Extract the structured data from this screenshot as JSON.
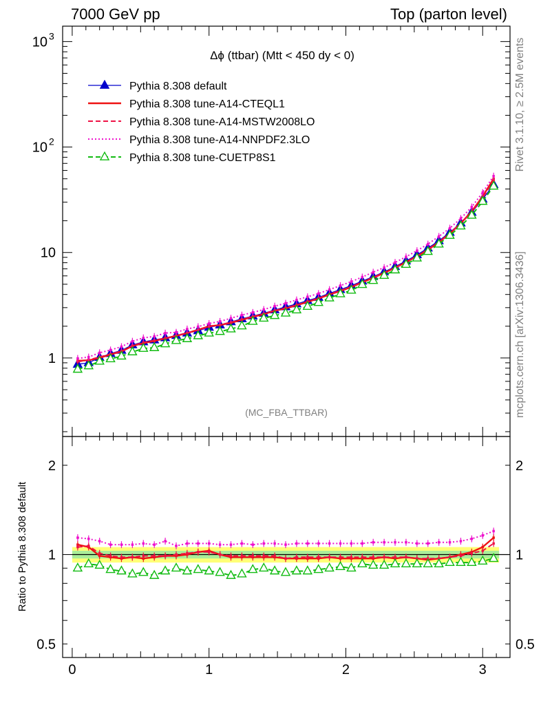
{
  "header": {
    "left_title": "7000 GeV pp",
    "right_title": "Top (parton level)"
  },
  "side_labels": {
    "rivet": "Rivet 3.1.10, ≥ 2.5M events",
    "mcplots": "mcplots.cern.ch [arXiv:1306.3436]"
  },
  "watermark": "(MC_FBA_TTBAR)",
  "ratio_ylabel": "Ratio to Pythia 8.308 default",
  "chart_data": [
    {
      "type": "line",
      "title": "Δϕ (ttbar) (Mtt < 450 dy < 0)",
      "y_scale": "log",
      "xlim": [
        -0.07,
        3.2
      ],
      "ylim": [
        0.18,
        1400
      ],
      "x_ticks": [
        0,
        1,
        2,
        3
      ],
      "y_tick_labels": [
        {
          "value": 1,
          "label": "1"
        },
        {
          "value": 10,
          "label": "10"
        },
        {
          "value": 100,
          "label": "10",
          "sup": "2"
        },
        {
          "value": 1000,
          "label": "10",
          "sup": "3"
        }
      ],
      "legend_position": "top-left",
      "x": [
        0.04,
        0.12,
        0.2,
        0.28,
        0.36,
        0.44,
        0.52,
        0.6,
        0.68,
        0.76,
        0.84,
        0.92,
        1.0,
        1.08,
        1.16,
        1.24,
        1.32,
        1.4,
        1.48,
        1.56,
        1.64,
        1.72,
        1.8,
        1.88,
        1.96,
        2.04,
        2.12,
        2.2,
        2.28,
        2.36,
        2.44,
        2.52,
        2.6,
        2.68,
        2.76,
        2.84,
        2.92,
        3.0,
        3.08
      ],
      "series": [
        {
          "name": "Pythia 8.308 default",
          "color": "#0000cc",
          "style": "solid-triangle",
          "values": [
            0.87,
            0.9,
            1.01,
            1.1,
            1.18,
            1.33,
            1.42,
            1.48,
            1.55,
            1.63,
            1.72,
            1.81,
            1.95,
            2.05,
            2.2,
            2.35,
            2.5,
            2.65,
            2.85,
            3.05,
            3.25,
            3.5,
            3.75,
            4.1,
            4.45,
            4.85,
            5.35,
            5.9,
            6.55,
            7.35,
            8.3,
            9.5,
            11.0,
            12.9,
            15.5,
            19.0,
            24.0,
            32.0,
            44.0
          ]
        },
        {
          "name": "Pythia 8.308 tune-A14-CTEQL1",
          "color": "#ee1111",
          "style": "solid",
          "values": [
            0.94,
            0.95,
            1.0,
            1.08,
            1.15,
            1.3,
            1.38,
            1.45,
            1.53,
            1.62,
            1.72,
            1.85,
            2.0,
            2.05,
            2.15,
            2.3,
            2.45,
            2.6,
            2.8,
            2.95,
            3.15,
            3.4,
            3.65,
            4.0,
            4.3,
            4.7,
            5.2,
            5.75,
            6.4,
            7.15,
            8.1,
            9.2,
            10.6,
            12.5,
            15.1,
            18.9,
            24.5,
            34.0,
            50.0
          ]
        },
        {
          "name": "Pythia 8.308 tune-A14-MSTW2008LO",
          "color": "#ee1144",
          "style": "dashed",
          "values": [
            0.92,
            0.96,
            1.02,
            1.09,
            1.16,
            1.31,
            1.4,
            1.47,
            1.54,
            1.63,
            1.73,
            1.84,
            1.98,
            2.06,
            2.18,
            2.32,
            2.47,
            2.63,
            2.82,
            2.98,
            3.18,
            3.43,
            3.68,
            4.03,
            4.35,
            4.75,
            5.25,
            5.8,
            6.45,
            7.2,
            8.15,
            9.25,
            10.7,
            12.6,
            15.2,
            18.8,
            24.3,
            33.0,
            48.0
          ]
        },
        {
          "name": "Pythia 8.308 tune-A14-NNPDF2.3LO",
          "color": "#ee11cc",
          "style": "dotted",
          "values": [
            0.99,
            1.02,
            1.12,
            1.19,
            1.28,
            1.44,
            1.55,
            1.6,
            1.72,
            1.75,
            1.88,
            1.98,
            2.12,
            2.22,
            2.38,
            2.55,
            2.7,
            2.88,
            3.1,
            3.3,
            3.55,
            3.8,
            4.08,
            4.45,
            4.85,
            5.3,
            5.85,
            6.5,
            7.2,
            8.05,
            9.1,
            10.4,
            12.0,
            14.2,
            17.0,
            21.0,
            27.0,
            37.0,
            53.0
          ]
        },
        {
          "name": "Pythia 8.308 tune-CUETP8S1",
          "color": "#11bb11",
          "style": "dashed-open-triangle",
          "values": [
            0.78,
            0.84,
            0.93,
            0.98,
            1.04,
            1.14,
            1.23,
            1.25,
            1.36,
            1.46,
            1.52,
            1.62,
            1.72,
            1.78,
            1.88,
            2.01,
            2.22,
            2.38,
            2.52,
            2.66,
            2.85,
            3.08,
            3.35,
            3.7,
            4.05,
            4.38,
            4.96,
            5.42,
            6.05,
            6.82,
            7.7,
            8.85,
            10.2,
            12.0,
            14.5,
            17.8,
            22.5,
            30.5,
            42.5
          ]
        }
      ]
    },
    {
      "type": "line",
      "title": "",
      "ylabel": "Ratio to Pythia 8.308 default",
      "y_scale": "log",
      "xlim": [
        -0.07,
        3.2
      ],
      "ylim": [
        0.45,
        2.5
      ],
      "x_ticks": [
        0,
        1,
        2,
        3
      ],
      "y_tick_labels": [
        {
          "value": 0.5,
          "label": "0.5"
        },
        {
          "value": 1,
          "label": "1"
        },
        {
          "value": 2,
          "label": "2"
        }
      ],
      "band_inner": 0.03,
      "band_outer": 0.06,
      "x": [
        0.04,
        0.12,
        0.2,
        0.28,
        0.36,
        0.44,
        0.52,
        0.6,
        0.68,
        0.76,
        0.84,
        0.92,
        1.0,
        1.08,
        1.16,
        1.24,
        1.32,
        1.4,
        1.48,
        1.56,
        1.64,
        1.72,
        1.8,
        1.88,
        1.96,
        2.04,
        2.12,
        2.2,
        2.28,
        2.36,
        2.44,
        2.52,
        2.6,
        2.68,
        2.76,
        2.84,
        2.92,
        3.0,
        3.08
      ],
      "series": [
        {
          "name": "Pythia 8.308 default",
          "color": "#000000",
          "style": "solid",
          "values": [
            1,
            1,
            1,
            1,
            1,
            1,
            1,
            1,
            1,
            1,
            1,
            1,
            1,
            1,
            1,
            1,
            1,
            1,
            1,
            1,
            1,
            1,
            1,
            1,
            1,
            1,
            1,
            1,
            1,
            1,
            1,
            1,
            1,
            1,
            1,
            1,
            1,
            1,
            1
          ]
        },
        {
          "name": "Pythia 8.308 tune-A14-CTEQL1",
          "color": "#ee1111",
          "style": "solid",
          "values": [
            1.08,
            1.06,
            0.99,
            0.98,
            0.97,
            0.98,
            0.97,
            0.98,
            0.99,
            0.99,
            1.0,
            1.02,
            1.03,
            1.0,
            0.98,
            0.98,
            0.98,
            0.98,
            0.98,
            0.97,
            0.97,
            0.97,
            0.97,
            0.98,
            0.97,
            0.97,
            0.97,
            0.97,
            0.98,
            0.97,
            0.98,
            0.97,
            0.96,
            0.97,
            0.98,
            1.0,
            1.02,
            1.06,
            1.14
          ]
        },
        {
          "name": "Pythia 8.308 tune-A14-MSTW2008LO",
          "color": "#ee1144",
          "style": "dashed",
          "values": [
            1.06,
            1.07,
            1.01,
            0.99,
            0.98,
            0.98,
            0.99,
            0.99,
            0.99,
            1.0,
            1.01,
            1.02,
            1.02,
            1.0,
            0.99,
            0.99,
            0.99,
            0.99,
            0.99,
            0.97,
            0.98,
            0.98,
            0.98,
            0.98,
            0.98,
            0.98,
            0.98,
            0.98,
            0.98,
            0.98,
            0.98,
            0.97,
            0.97,
            0.97,
            0.98,
            0.99,
            1.01,
            1.03,
            1.09
          ]
        },
        {
          "name": "Pythia 8.308 tune-A14-NNPDF2.3LO",
          "color": "#ee11cc",
          "style": "dotted",
          "values": [
            1.14,
            1.13,
            1.11,
            1.08,
            1.08,
            1.08,
            1.09,
            1.08,
            1.11,
            1.07,
            1.09,
            1.09,
            1.09,
            1.08,
            1.08,
            1.09,
            1.08,
            1.09,
            1.09,
            1.08,
            1.09,
            1.09,
            1.09,
            1.09,
            1.09,
            1.09,
            1.09,
            1.1,
            1.1,
            1.1,
            1.1,
            1.09,
            1.09,
            1.1,
            1.1,
            1.11,
            1.13,
            1.16,
            1.2
          ]
        },
        {
          "name": "Pythia 8.308 tune-CUETP8S1",
          "color": "#11bb11",
          "style": "dashed-open-triangle",
          "values": [
            0.9,
            0.93,
            0.92,
            0.89,
            0.88,
            0.86,
            0.87,
            0.85,
            0.88,
            0.9,
            0.88,
            0.89,
            0.88,
            0.87,
            0.85,
            0.86,
            0.89,
            0.9,
            0.88,
            0.87,
            0.88,
            0.88,
            0.89,
            0.9,
            0.91,
            0.9,
            0.93,
            0.92,
            0.92,
            0.93,
            0.93,
            0.93,
            0.93,
            0.93,
            0.94,
            0.94,
            0.94,
            0.95,
            0.97
          ]
        }
      ]
    }
  ]
}
